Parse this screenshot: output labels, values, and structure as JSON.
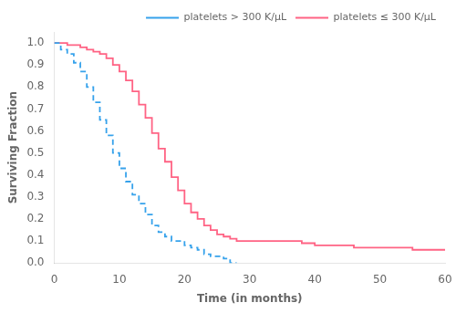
{
  "chart_data": {
    "type": "line",
    "xlabel": "Time (in months)",
    "ylabel": "Surviving Fraction",
    "xlim": [
      0,
      60
    ],
    "ylim": [
      0.0,
      1.05
    ],
    "xticks": [
      0,
      10,
      20,
      30,
      40,
      50,
      60
    ],
    "yticks": [
      {
        "value": 0.0,
        "label": "0.0"
      },
      0.1,
      0.2,
      0.3,
      0.4,
      0.5,
      0.6,
      0.7,
      0.8,
      0.9,
      {
        "value": 1.0,
        "label": "1.0"
      }
    ],
    "grid": false,
    "legend": "upper right",
    "series": [
      {
        "name": "platelets > 300 K/μL",
        "line_style": "dashed",
        "x": [
          0,
          1,
          2,
          3,
          4,
          5,
          6,
          7,
          8,
          9,
          10,
          11,
          12,
          13,
          14,
          15,
          16,
          17,
          18,
          19,
          20,
          21,
          22,
          23,
          24,
          25,
          26,
          27,
          28
        ],
        "values": [
          1.0,
          0.97,
          0.95,
          0.91,
          0.87,
          0.8,
          0.73,
          0.65,
          0.58,
          0.5,
          0.43,
          0.37,
          0.31,
          0.27,
          0.22,
          0.17,
          0.14,
          0.12,
          0.1,
          0.1,
          0.08,
          0.07,
          0.06,
          0.04,
          0.03,
          0.03,
          0.02,
          0.0,
          0.0
        ]
      },
      {
        "name": "platelets ≤ 300 K/μL",
        "line_style": "solid",
        "x": [
          0,
          1,
          2,
          3,
          4,
          5,
          6,
          7,
          8,
          9,
          10,
          11,
          12,
          13,
          14,
          15,
          16,
          17,
          18,
          19,
          20,
          21,
          22,
          23,
          24,
          25,
          26,
          27,
          28,
          29,
          30,
          32,
          34,
          36,
          38,
          40,
          42,
          44,
          46,
          48,
          50,
          55,
          60
        ],
        "values": [
          1.0,
          1.0,
          0.99,
          0.99,
          0.98,
          0.97,
          0.96,
          0.95,
          0.93,
          0.9,
          0.87,
          0.83,
          0.78,
          0.72,
          0.66,
          0.59,
          0.52,
          0.46,
          0.39,
          0.33,
          0.27,
          0.23,
          0.2,
          0.17,
          0.15,
          0.13,
          0.12,
          0.11,
          0.1,
          0.1,
          0.1,
          0.1,
          0.1,
          0.1,
          0.09,
          0.08,
          0.08,
          0.08,
          0.07,
          0.07,
          0.07,
          0.06,
          0.06
        ]
      }
    ]
  }
}
